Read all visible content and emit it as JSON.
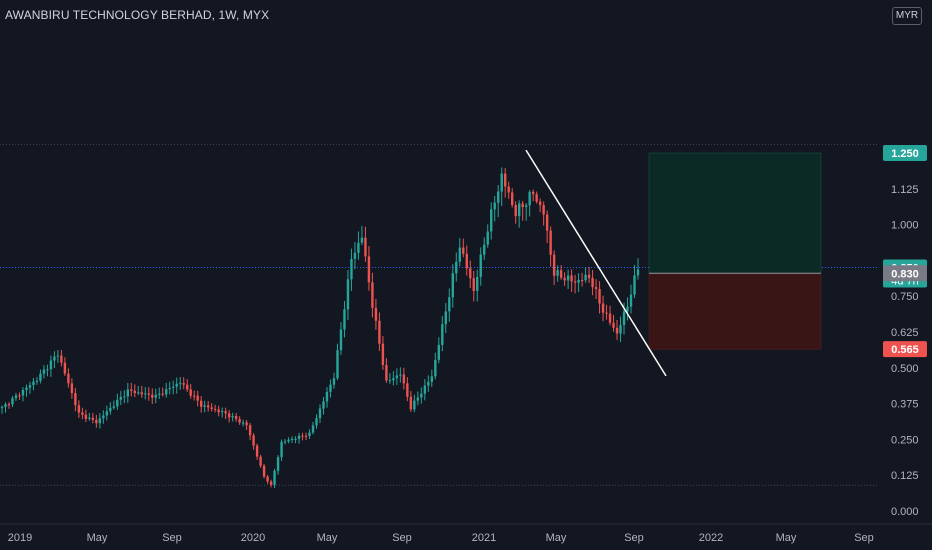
{
  "header": {
    "title": "AWANBIRU TECHNOLOGY BERHAD, 1W, MYX",
    "currency": "MYR"
  },
  "colors": {
    "background": "#131722",
    "up": "#26a69a",
    "down": "#ef5350",
    "target_zone": "#0b2a26",
    "stop_zone": "#3a1516",
    "trendline": "#ffffff"
  },
  "chart_data": {
    "type": "candlestick",
    "title": "AWANBIRU TECHNOLOGY BERHAD, 1W, MYX",
    "ylim": [
      0.0,
      1.25
    ],
    "y_ticks": [
      "0.000",
      "0.125",
      "0.250",
      "0.375",
      "0.500",
      "0.625",
      "0.750",
      "1.000",
      "1.125"
    ],
    "x_ticks": [
      "2019",
      "May",
      "Sep",
      "2020",
      "May",
      "Sep",
      "2021",
      "May",
      "Sep",
      "2022",
      "May",
      "Sep"
    ],
    "series": [
      {
        "name": "price",
        "key_levels": {
          "start_2019": 0.36,
          "peak_2019": 0.55,
          "low_2020": 0.09,
          "high_2020": 1.04,
          "low_2020b": 0.32,
          "high_2021": 1.27,
          "low_sep_2021": 0.59,
          "last": 0.85
        }
      }
    ],
    "trendline": {
      "from": {
        "date": "2021-03",
        "price": 1.26
      },
      "to": {
        "date": "2021-10",
        "price": 0.58
      }
    },
    "position": {
      "entry": 0.83,
      "target": 1.25,
      "stop": 0.565
    },
    "price_tags": [
      {
        "label": "1.250",
        "value": 1.25,
        "color": "#26a69a"
      },
      {
        "label": "0.850",
        "sub": "4d 7h",
        "value": 0.85,
        "color": "#26a69a"
      },
      {
        "label": "0.830",
        "value": 0.83,
        "color": "#787b86"
      },
      {
        "label": "0.565",
        "value": 0.565,
        "color": "#ef5350"
      }
    ],
    "grid": false,
    "reference_lines": [
      1.28,
      0.85,
      0.09
    ]
  }
}
